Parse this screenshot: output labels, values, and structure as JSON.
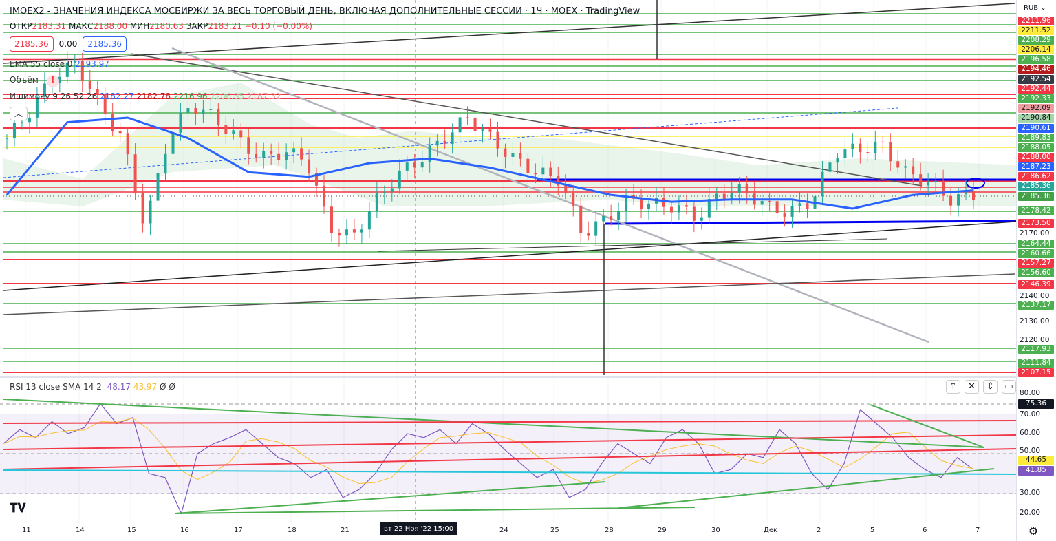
{
  "header": {
    "title": "IMOEX2 - ЗНАЧЕНИЯ ИНДЕКСА МОСБИРЖИ ЗА ВЕСЬ ТОРГОВЫЙ ДЕНЬ, ВКЛЮЧАЯ ДОПОЛНИТЕЛЬНЫЕ СЕССИИ · 1Ч · MOEX · TradingView",
    "open_label": "ОТКР",
    "open": "2183.31",
    "high_label": "МАКС",
    "high": "2188.00",
    "low_label": "МИН",
    "low": "2180.63",
    "close_label": "ЗАКР",
    "close": "2183.21",
    "change": "−0.10 (−0.00%)",
    "sell": "2185.36",
    "spread": "0.00",
    "buy": "2185.36"
  },
  "indicators": {
    "ema": "EMA 55 close 0",
    "ema_val": "2193.97",
    "volume": "Объём",
    "warn": "!",
    "ichimoku": "Ишимоку 9 26 52 26",
    "ich": [
      "2182.27",
      "2182.78",
      "2216.96",
      "2206.85",
      "2187.32"
    ]
  },
  "axis": {
    "currency": "RUB ⌄",
    "ticks": [
      "2170.00",
      "2140.00",
      "2130.00",
      "2120.00"
    ],
    "labels": [
      {
        "t": "2211.96",
        "c": "#f23645"
      },
      {
        "t": "2211.52",
        "c": "#ffeb3b",
        "dark": true
      },
      {
        "t": "2208.29",
        "c": "#4caf50"
      },
      {
        "t": "2206.14",
        "c": "#ffeb3b",
        "dark": true
      },
      {
        "t": "2196.58",
        "c": "#4caf50"
      },
      {
        "t": "2194.46",
        "c": "#b71c1c"
      },
      {
        "t": "2192.54",
        "c": "#363a45"
      },
      {
        "t": "2192.44",
        "c": "#f23645"
      },
      {
        "t": "2192.33",
        "c": "#4caf50"
      },
      {
        "t": "2192.09",
        "c": "#f19c9f",
        "dark": true
      },
      {
        "t": "2190.84",
        "c": "#a5d6a7",
        "dark": true
      },
      {
        "t": "2190.61",
        "c": "#2962ff"
      },
      {
        "t": "2189.83",
        "c": "#4caf50"
      },
      {
        "t": "2188.05",
        "c": "#4caf50"
      },
      {
        "t": "2188.00",
        "c": "#f23645"
      },
      {
        "t": "2187.23",
        "c": "#2962ff"
      },
      {
        "t": "2186.62",
        "c": "#f23645"
      },
      {
        "t": "2185.36",
        "c": "#26a69a"
      },
      {
        "t": "2185.36",
        "c": "#43a047"
      },
      {
        "t": "2178.42",
        "c": "#4caf50"
      },
      {
        "t": "2173.50",
        "c": "#f23645"
      },
      {
        "t": "2164.44",
        "c": "#4caf50"
      },
      {
        "t": "2160.66",
        "c": "#4caf50"
      },
      {
        "t": "2157.27",
        "c": "#f23645"
      },
      {
        "t": "2156.60",
        "c": "#4caf50"
      },
      {
        "t": "2146.39",
        "c": "#f23645"
      },
      {
        "t": "2137.17",
        "c": "#4caf50"
      },
      {
        "t": "2117.93",
        "c": "#4caf50"
      },
      {
        "t": "2111.84",
        "c": "#4caf50"
      },
      {
        "t": "2107.15",
        "c": "#f23645"
      }
    ]
  },
  "rsi": {
    "legend": "RSI 13 close SMA 14 2",
    "rsi": "48.17",
    "sma": "43.97",
    "z1": "Ø",
    "z2": "Ø",
    "ticks": [
      "80.00",
      "70.00",
      "60.00",
      "50.00",
      "30.00",
      "20.00"
    ],
    "cur_label": "75.36",
    "sma_label": "44.65",
    "rsi_label": "41.85",
    "tools": [
      "↑",
      "✕",
      "⇕",
      "▭"
    ]
  },
  "dates": [
    "11",
    "14",
    "15",
    "16",
    "17",
    "18",
    "21",
    "24",
    "25",
    "28",
    "29",
    "30",
    "Дек",
    "2",
    "5",
    "6",
    "7"
  ],
  "crosshair_date": "вт 22 Ноя '22   15:00",
  "chart_data": {
    "type": "candlestick",
    "title": "IMOEX2 1H",
    "ylabel": "RUB",
    "close_approx": [
      2211,
      2223,
      2238,
      2244,
      2226,
      2211,
      2172,
      2211,
      2226,
      2220,
      2211,
      2202,
      2205,
      2202,
      2172,
      2167,
      2183,
      2195,
      2202,
      2211,
      2220,
      2211,
      2202,
      2196,
      2193,
      2169,
      2175,
      2184,
      2182,
      2181,
      2176,
      2187,
      2188,
      2181,
      2178,
      2184,
      2205,
      2206,
      2208,
      2196,
      2192,
      2184,
      2186
    ],
    "ema_approx": [
      2186,
      2218,
      2220,
      2211,
      2196,
      2194,
      2200,
      2202,
      2198,
      2192,
      2186,
      2183,
      2184,
      2184,
      2180,
      2186,
      2188
    ],
    "rsi": [
      55,
      62,
      58,
      66,
      60,
      63,
      75,
      65,
      68,
      40,
      38,
      20,
      50,
      55,
      58,
      62,
      55,
      48,
      45,
      38,
      42,
      28,
      32,
      40,
      52,
      60,
      58,
      62,
      55,
      65,
      60,
      52,
      45,
      38,
      42,
      28,
      32,
      45,
      55,
      50,
      45,
      58,
      62,
      55,
      40,
      42,
      50,
      48,
      62,
      55,
      40,
      32,
      45,
      72,
      65,
      58,
      48,
      42,
      38,
      48,
      42
    ],
    "rsi_range": [
      20,
      80
    ]
  }
}
